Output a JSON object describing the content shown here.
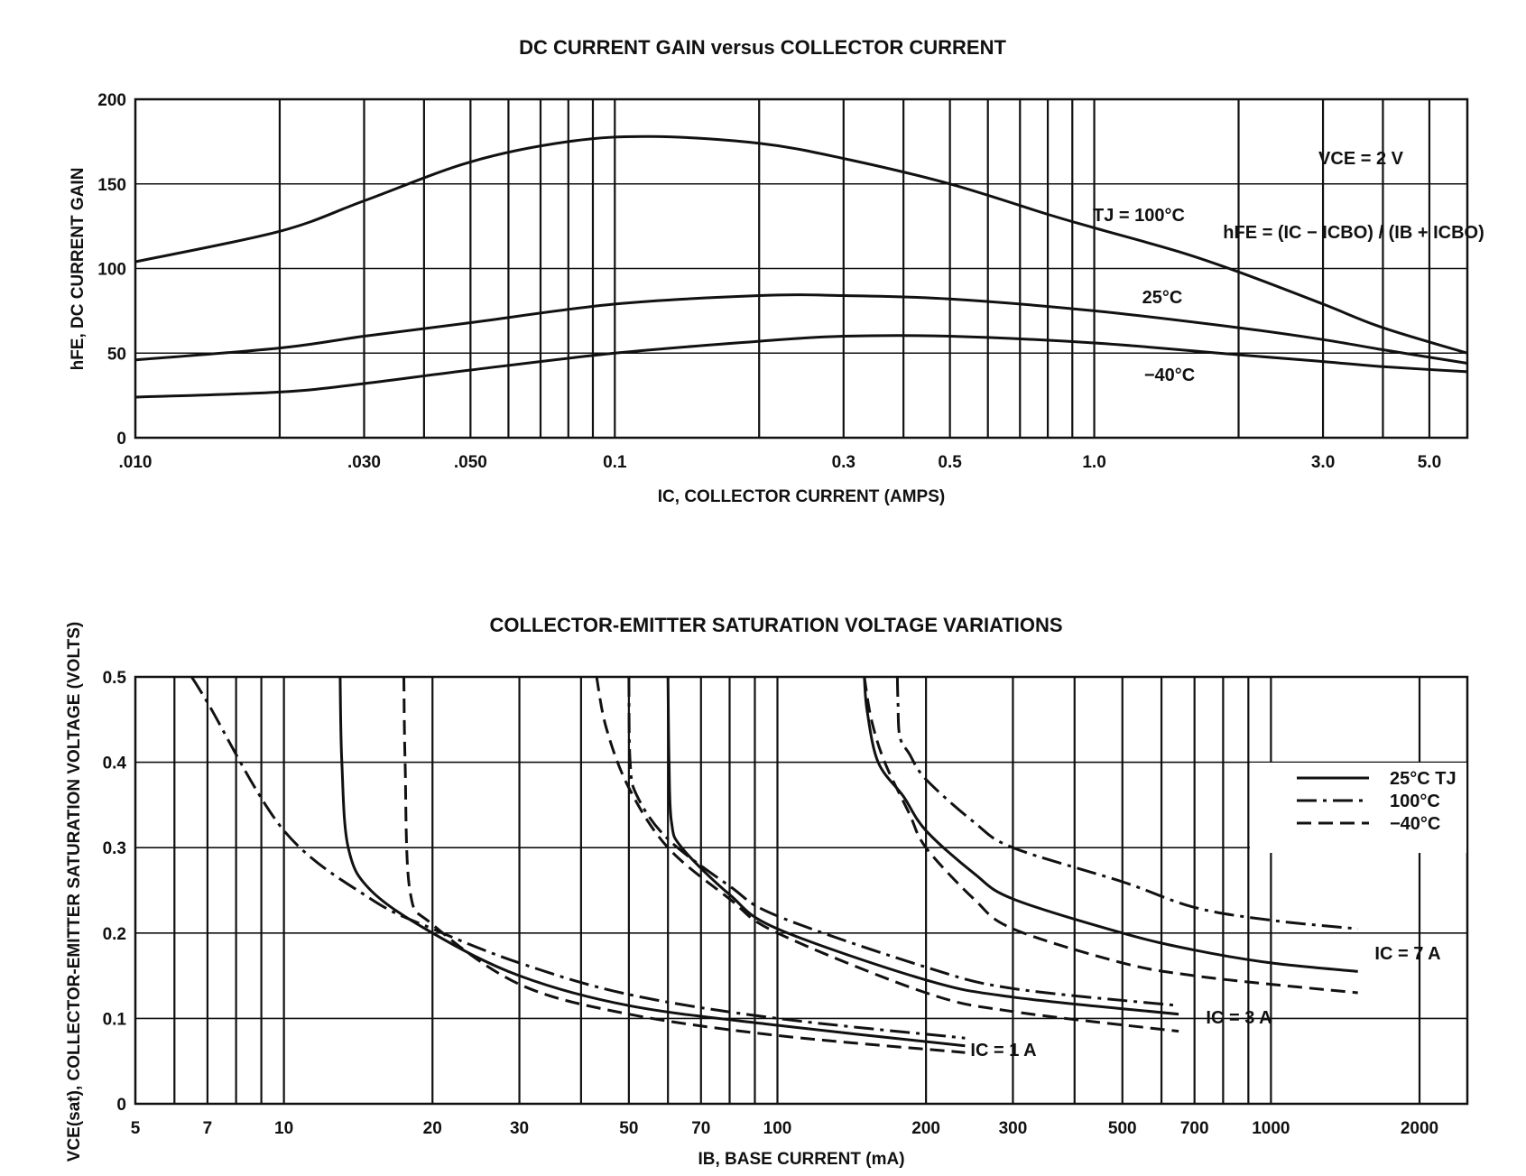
{
  "chart_data": [
    {
      "type": "line",
      "title": "DC CURRENT GAIN versus COLLECTOR CURRENT",
      "xlabel": "IC, COLLECTOR CURRENT (AMPS)",
      "ylabel": "hFE, DC CURRENT GAIN",
      "x_scale": "log",
      "xlim": [
        0.01,
        6.0
      ],
      "ylim": [
        0,
        200
      ],
      "x_ticks": [
        {
          "value": 0.01,
          "label": ".010"
        },
        {
          "value": 0.03,
          "label": ".030"
        },
        {
          "value": 0.05,
          "label": ".050"
        },
        {
          "value": 0.1,
          "label": "0.1"
        },
        {
          "value": 0.3,
          "label": "0.3"
        },
        {
          "value": 0.5,
          "label": "0.5"
        },
        {
          "value": 1.0,
          "label": "1.0"
        },
        {
          "value": 3.0,
          "label": "3.0"
        },
        {
          "value": 5.0,
          "label": "5.0"
        }
      ],
      "y_ticks": [
        {
          "value": 0,
          "label": "0"
        },
        {
          "value": 50,
          "label": "50"
        },
        {
          "value": 100,
          "label": "100"
        },
        {
          "value": 150,
          "label": "150"
        },
        {
          "value": 200,
          "label": "200"
        }
      ],
      "grid": true,
      "series": [
        {
          "name": "TJ = 100°C",
          "style": "solid",
          "x": [
            0.01,
            0.02,
            0.03,
            0.05,
            0.08,
            0.12,
            0.2,
            0.3,
            0.5,
            0.8,
            1.0,
            1.5,
            2.0,
            3.0,
            4.0,
            6.0
          ],
          "y": [
            104,
            122,
            140,
            163,
            175,
            178,
            174,
            165,
            150,
            132,
            124,
            110,
            98,
            79,
            65,
            50
          ]
        },
        {
          "name": "25°C",
          "style": "solid",
          "x": [
            0.01,
            0.02,
            0.03,
            0.05,
            0.1,
            0.2,
            0.3,
            0.5,
            1.0,
            2.0,
            3.0,
            4.0,
            6.0
          ],
          "y": [
            46,
            53,
            60,
            68,
            79,
            84,
            84,
            82,
            75,
            65,
            58,
            52,
            44
          ]
        },
        {
          "name": "−40°C",
          "style": "solid",
          "x": [
            0.01,
            0.02,
            0.03,
            0.05,
            0.1,
            0.2,
            0.3,
            0.5,
            1.0,
            2.0,
            3.0,
            4.0,
            6.0
          ],
          "y": [
            24,
            27,
            32,
            40,
            50,
            57,
            60,
            60,
            56,
            49,
            45,
            42,
            39
          ]
        }
      ],
      "annotations": [
        {
          "text": "TJ = 100°C",
          "x": 1.0,
          "y": 128
        },
        {
          "text": "25°C",
          "x": 1.65,
          "y": 83
        },
        {
          "text": "−40°C",
          "x": 1.65,
          "y": 36
        },
        {
          "text": "VCE = 2 V",
          "x": 4.3,
          "y": 163
        },
        {
          "text": "hFE = (IC − ICBO) / (IB + ICBO)",
          "x": 4.0,
          "y": 122
        }
      ]
    },
    {
      "type": "line",
      "title": "COLLECTOR-EMITTER SATURATION VOLTAGE VARIATIONS",
      "xlabel": "IB, BASE CURRENT (mA)",
      "ylabel": "VCE(sat), COLLECTOR-EMITTER SATURATION VOLTAGE (VOLTS)",
      "x_scale": "log",
      "xlim": [
        5,
        2500
      ],
      "ylim": [
        0,
        0.5
      ],
      "x_ticks": [
        {
          "value": 5,
          "label": "5"
        },
        {
          "value": 7,
          "label": "7"
        },
        {
          "value": 10,
          "label": "10"
        },
        {
          "value": 20,
          "label": "20"
        },
        {
          "value": 30,
          "label": "30"
        },
        {
          "value": 50,
          "label": "50"
        },
        {
          "value": 70,
          "label": "70"
        },
        {
          "value": 100,
          "label": "100"
        },
        {
          "value": 200,
          "label": "200"
        },
        {
          "value": 300,
          "label": "300"
        },
        {
          "value": 500,
          "label": "500"
        },
        {
          "value": 700,
          "label": "700"
        },
        {
          "value": 1000,
          "label": "1000"
        },
        {
          "value": 2000,
          "label": "2000"
        }
      ],
      "y_ticks": [
        {
          "value": 0,
          "label": "0"
        },
        {
          "value": 0.1,
          "label": "0.1"
        },
        {
          "value": 0.2,
          "label": "0.2"
        },
        {
          "value": 0.3,
          "label": "0.3"
        },
        {
          "value": 0.4,
          "label": "0.4"
        },
        {
          "value": 0.5,
          "label": "0.5"
        }
      ],
      "grid": true,
      "legend": {
        "position": "right",
        "entries": [
          {
            "label": "25°C TJ",
            "style": "solid"
          },
          {
            "label": "100°C",
            "style": "dashdot"
          },
          {
            "label": "−40°C",
            "style": "dashed"
          }
        ]
      },
      "series": [
        {
          "name": "IC = 1 A, 25°C",
          "style": "solid",
          "x": [
            13,
            13.1,
            13.5,
            15,
            20,
            30,
            50,
            100,
            240
          ],
          "y": [
            0.5,
            0.4,
            0.3,
            0.25,
            0.2,
            0.15,
            0.115,
            0.092,
            0.068
          ]
        },
        {
          "name": "IC = 1 A, 100°C",
          "style": "dashdot",
          "x": [
            6.5,
            7,
            10,
            15,
            20,
            30,
            50,
            100,
            240
          ],
          "y": [
            0.5,
            0.47,
            0.32,
            0.24,
            0.205,
            0.165,
            0.128,
            0.1,
            0.077
          ]
        },
        {
          "name": "IC = 1 A, −40°C",
          "style": "dashed",
          "x": [
            17.5,
            17.6,
            18,
            20,
            30,
            50,
            100,
            240
          ],
          "y": [
            0.5,
            0.4,
            0.25,
            0.21,
            0.14,
            0.105,
            0.08,
            0.06
          ]
        },
        {
          "name": "IC = 3 A, 25°C",
          "style": "solid",
          "x": [
            60,
            60.3,
            61,
            64,
            80,
            100,
            200,
            300,
            650
          ],
          "y": [
            0.5,
            0.4,
            0.33,
            0.3,
            0.245,
            0.205,
            0.145,
            0.125,
            0.105
          ]
        },
        {
          "name": "IC = 3 A, 100°C",
          "style": "dashdot",
          "x": [
            50,
            50.3,
            52,
            60,
            80,
            100,
            200,
            300,
            650
          ],
          "y": [
            0.5,
            0.4,
            0.36,
            0.31,
            0.255,
            0.22,
            0.16,
            0.135,
            0.115
          ]
        },
        {
          "name": "IC = 3 A, −40°C",
          "style": "dashed",
          "x": [
            43,
            45,
            50,
            60,
            80,
            100,
            200,
            300,
            650
          ],
          "y": [
            0.5,
            0.44,
            0.37,
            0.3,
            0.24,
            0.2,
            0.13,
            0.108,
            0.085
          ]
        },
        {
          "name": "IC = 7 A, 25°C",
          "style": "solid",
          "x": [
            150,
            152,
            160,
            180,
            200,
            250,
            300,
            500,
            700,
            1000,
            1500
          ],
          "y": [
            0.5,
            0.46,
            0.4,
            0.36,
            0.32,
            0.27,
            0.24,
            0.2,
            0.18,
            0.165,
            0.155
          ]
        },
        {
          "name": "IC = 7 A, 100°C",
          "style": "dashdot",
          "x": [
            175,
            175.5,
            177,
            185,
            200,
            250,
            300,
            500,
            700,
            1000,
            1500
          ],
          "y": [
            0.5,
            0.47,
            0.43,
            0.41,
            0.38,
            0.33,
            0.3,
            0.26,
            0.23,
            0.215,
            0.205
          ]
        },
        {
          "name": "IC = 7 A, −40°C",
          "style": "dashed",
          "x": [
            150,
            155,
            165,
            185,
            200,
            250,
            300,
            500,
            700,
            1000,
            1500
          ],
          "y": [
            0.5,
            0.45,
            0.4,
            0.34,
            0.3,
            0.24,
            0.205,
            0.165,
            0.15,
            0.14,
            0.13
          ]
        }
      ],
      "annotations": [
        {
          "text": "IC = 1 A",
          "x": 270,
          "y": 0.062
        },
        {
          "text": "IC = 3 A",
          "x": 700,
          "y": 0.1
        },
        {
          "text": "IC = 7 A",
          "x": 1700,
          "y": 0.17
        }
      ]
    }
  ]
}
